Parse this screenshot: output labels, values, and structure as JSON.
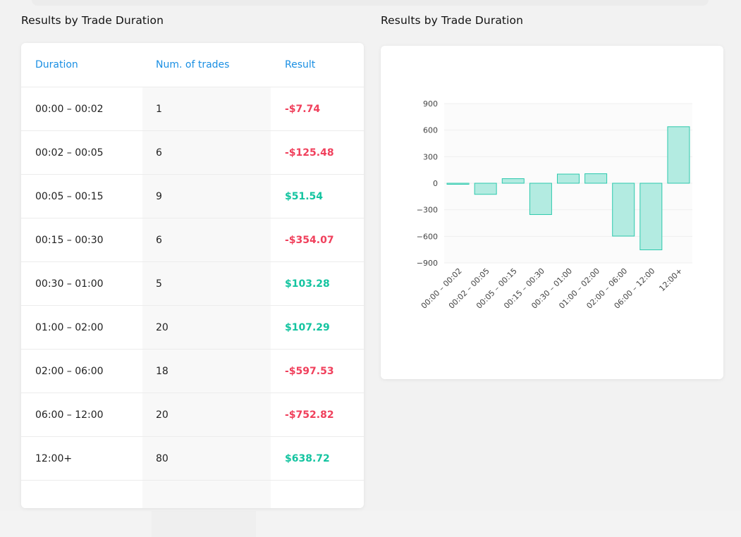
{
  "table_section": {
    "title": "Results by Trade Duration",
    "headers": {
      "duration": "Duration",
      "num_trades": "Num. of trades",
      "result": "Result"
    },
    "rows": [
      {
        "duration": "00:00 – 00:02",
        "trades": "1",
        "result": "-$7.74",
        "sign": "neg"
      },
      {
        "duration": "00:02 – 00:05",
        "trades": "6",
        "result": "-$125.48",
        "sign": "neg"
      },
      {
        "duration": "00:05 – 00:15",
        "trades": "9",
        "result": "$51.54",
        "sign": "pos"
      },
      {
        "duration": "00:15 – 00:30",
        "trades": "6",
        "result": "-$354.07",
        "sign": "neg"
      },
      {
        "duration": "00:30 – 01:00",
        "trades": "5",
        "result": "$103.28",
        "sign": "pos"
      },
      {
        "duration": "01:00 – 02:00",
        "trades": "20",
        "result": "$107.29",
        "sign": "pos"
      },
      {
        "duration": "02:00 – 06:00",
        "trades": "18",
        "result": "-$597.53",
        "sign": "neg"
      },
      {
        "duration": "06:00 – 12:00",
        "trades": "20",
        "result": "-$752.82",
        "sign": "neg"
      },
      {
        "duration": "12:00+",
        "trades": "80",
        "result": "$638.72",
        "sign": "pos"
      }
    ]
  },
  "chart_section": {
    "title": "Results by Trade Duration"
  },
  "colors": {
    "header_text": "#1a8fe3",
    "negative": "#f0405c",
    "positive": "#14c4a0",
    "bar_fill": "#b3ebe1",
    "bar_stroke": "#2ec9ad"
  },
  "chart_data": {
    "type": "bar",
    "categories": [
      "00:00 – 00:02",
      "00:02 – 00:05",
      "00:05 – 00:15",
      "00:15 – 00:30",
      "00:30 – 01:00",
      "01:00 – 02:00",
      "02:00 – 06:00",
      "06:00 – 12:00",
      "12:00+"
    ],
    "values": [
      -7.74,
      -125.48,
      51.54,
      -354.07,
      103.28,
      107.29,
      -597.53,
      -752.82,
      638.72
    ],
    "yticks": [
      900,
      600,
      300,
      0,
      -300,
      -600,
      -900
    ],
    "ytick_labels": [
      "900",
      "600",
      "300",
      "0",
      "−300",
      "−600",
      "−900"
    ],
    "ylim": [
      -900,
      900
    ],
    "title": "",
    "xlabel": "",
    "ylabel": "",
    "grid": true,
    "legend": "none"
  }
}
